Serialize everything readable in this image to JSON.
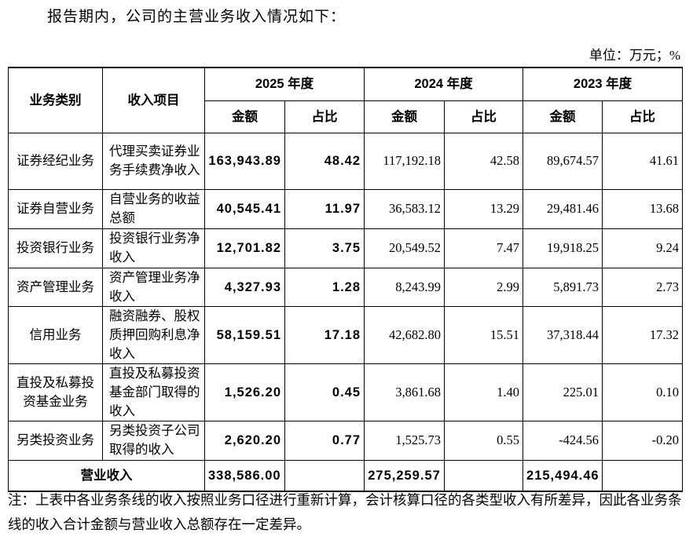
{
  "intro": "报告期内，公司的主营业务收入情况如下：",
  "unit": "单位：万元；%",
  "table": {
    "header": {
      "category": "业务类别",
      "item": "收入项目",
      "years": [
        {
          "year": "2025 年度",
          "amount": "金额",
          "ratio": "占比"
        },
        {
          "year": "2024 年度",
          "amount": "金额",
          "ratio": "占比"
        },
        {
          "year": "2023 年度",
          "amount": "金额",
          "ratio": "占比"
        }
      ]
    },
    "rows": [
      {
        "category": "证券经纪业务",
        "item": "代理买卖证券业务手续费净收入",
        "values": [
          "163,943.89",
          "48.42",
          "117,192.18",
          "42.58",
          "89,674.57",
          "41.61"
        ]
      },
      {
        "category": "证券自营业务",
        "item": "自营业务的收益总额",
        "values": [
          "40,545.41",
          "11.97",
          "36,583.12",
          "13.29",
          "29,481.46",
          "13.68"
        ]
      },
      {
        "category": "投资银行业务",
        "item": "投资银行业务净收入",
        "values": [
          "12,701.82",
          "3.75",
          "20,549.52",
          "7.47",
          "19,918.25",
          "9.24"
        ]
      },
      {
        "category": "资产管理业务",
        "item": "资产管理业务净收入",
        "values": [
          "4,327.93",
          "1.28",
          "8,243.99",
          "2.99",
          "5,891.73",
          "2.73"
        ]
      },
      {
        "category": "信用业务",
        "item": "融资融券、股权质押回购利息净收入",
        "values": [
          "58,159.51",
          "17.18",
          "42,682.80",
          "15.51",
          "37,318.44",
          "17.32"
        ]
      },
      {
        "category": "直投及私募投资基金业务",
        "item": "直投及私募投资基金部门取得的收入",
        "values": [
          "1,526.20",
          "0.45",
          "3,861.68",
          "1.40",
          "225.01",
          "0.10"
        ]
      },
      {
        "category": "另类投资业务",
        "item": "另类投资子公司取得的收入",
        "values": [
          "2,620.20",
          "0.77",
          "1,525.73",
          "0.55",
          "-424.56",
          "-0.20"
        ]
      }
    ],
    "total": {
      "label": "营业收入",
      "values": [
        "338,586.00",
        "275,259.57",
        "215,494.46"
      ]
    }
  },
  "note": "注：上表中各业务条线的收入按照业务口径进行重新计算，会计核算口径的各类型收入有所差异，因此各业务条线的收入合计金额与营业收入总额存在一定差异。"
}
